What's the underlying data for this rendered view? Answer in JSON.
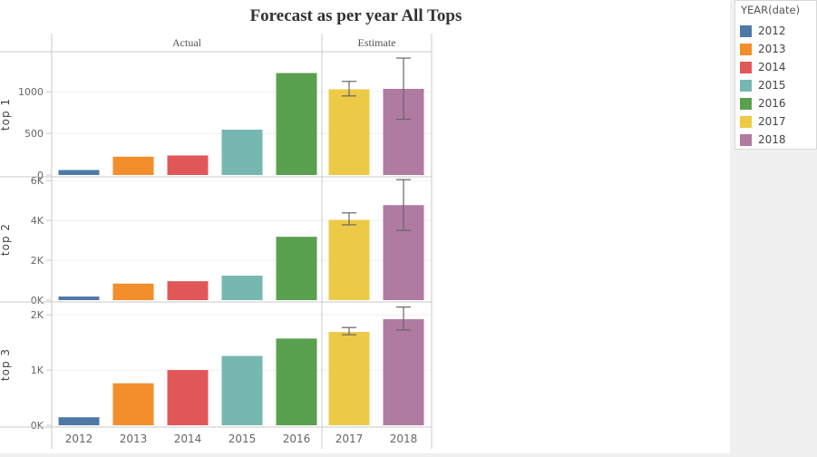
{
  "chart_data": {
    "type": "bar",
    "title": "Forecast as per year All  Tops",
    "categories": [
      "2012",
      "2013",
      "2014",
      "2015",
      "2016",
      "2017",
      "2018"
    ],
    "column_groups": [
      {
        "label": "Actual",
        "categories": [
          "2012",
          "2013",
          "2014",
          "2015",
          "2016"
        ]
      },
      {
        "label": "Estimate",
        "categories": [
          "2017",
          "2018"
        ]
      }
    ],
    "colors": [
      "#4e79a7",
      "#f28e2b",
      "#e15759",
      "#76b7b2",
      "#59a14f",
      "#edc948",
      "#b07aa1"
    ],
    "legend": {
      "title": "YEAR(date)",
      "placement": "right",
      "entries": [
        "2012",
        "2013",
        "2014",
        "2015",
        "2016",
        "2017",
        "2018"
      ]
    },
    "panels": [
      {
        "row_label": "top 1",
        "ylim": [
          0,
          1460
        ],
        "ticks": [
          {
            "v": 0,
            "label": "0"
          },
          {
            "v": 500,
            "label": "500"
          },
          {
            "v": 1000,
            "label": "1000"
          }
        ],
        "values": [
          60,
          220,
          235,
          545,
          1225,
          1030,
          1035
        ],
        "error_bars": [
          null,
          null,
          null,
          null,
          null,
          [
            950,
            1125
          ],
          [
            670,
            1405
          ]
        ]
      },
      {
        "row_label": "top 2",
        "ylim": [
          0,
          6100
        ],
        "ticks": [
          {
            "v": 0,
            "label": "0K"
          },
          {
            "v": 2000,
            "label": "2K"
          },
          {
            "v": 4000,
            "label": "4K"
          },
          {
            "v": 6000,
            "label": "6K"
          }
        ],
        "values": [
          180,
          830,
          950,
          1230,
          3180,
          4030,
          4770
        ],
        "error_bars": [
          null,
          null,
          null,
          null,
          null,
          [
            3780,
            4380
          ],
          [
            3500,
            6050
          ]
        ]
      },
      {
        "row_label": "top 3",
        "ylim": [
          0,
          2200
        ],
        "ticks": [
          {
            "v": 0,
            "label": "0K"
          },
          {
            "v": 1000,
            "label": "1K"
          },
          {
            "v": 2000,
            "label": "2K"
          }
        ],
        "values": [
          145,
          760,
          1000,
          1255,
          1570,
          1690,
          1920
        ],
        "error_bars": [
          null,
          null,
          null,
          null,
          null,
          [
            1640,
            1770
          ],
          [
            1725,
            2140
          ]
        ]
      }
    ],
    "grid": true
  }
}
